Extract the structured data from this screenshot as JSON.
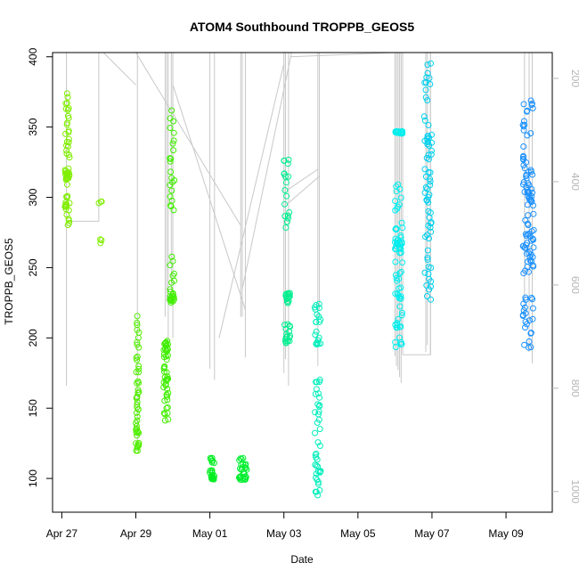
{
  "chart_data": {
    "type": "scatter",
    "title": "ATOM4 Southbound TROPPB_GEOS5",
    "xlabel": "Date",
    "ylabel": "TROPPB_GEOS5",
    "x_axis": {
      "type": "date",
      "range": [
        "2016-04-26T18:00",
        "2016-05-10T06:00"
      ],
      "ticks": [
        {
          "date": "2016-04-27",
          "label": "Apr 27"
        },
        {
          "date": "2016-04-29",
          "label": "Apr 29"
        },
        {
          "date": "2016-05-01",
          "label": "May 01"
        },
        {
          "date": "2016-05-03",
          "label": "May 03"
        },
        {
          "date": "2016-05-05",
          "label": "May 05"
        },
        {
          "date": "2016-05-07",
          "label": "May 07"
        },
        {
          "date": "2016-05-09",
          "label": "May 09"
        }
      ]
    },
    "y_axis": {
      "range": [
        76,
        403
      ],
      "ticks": [
        100,
        150,
        200,
        250,
        300,
        350,
        400
      ]
    },
    "y2_axis": {
      "note_color": "#b5b5b5",
      "range": [
        1040,
        150
      ],
      "ticks": [
        200,
        400,
        600,
        800,
        1000
      ],
      "inverted": true
    },
    "grid": false,
    "legend": "none",
    "line_color": "#c8c8c8",
    "groups": [
      {
        "start": "2016-04-27T02:00",
        "end": "2016-04-27T05:00",
        "ranges": [
          [
            312,
            320
          ],
          [
            300,
            345
          ],
          [
            335,
            375
          ],
          [
            280,
            300
          ]
        ],
        "point_count": 60,
        "color": "#80ee00"
      },
      {
        "start": "2016-04-28T00:00",
        "end": "2016-04-28T02:00",
        "ranges": [
          [
            266,
            272
          ],
          [
            295,
            298
          ]
        ],
        "point_count": 6,
        "color": "#80ee00"
      },
      {
        "start": "2016-04-29T00:00",
        "end": "2016-04-29T02:00",
        "ranges": [
          [
            117,
            140
          ],
          [
            140,
            170
          ],
          [
            170,
            228
          ]
        ],
        "point_count": 50,
        "color": "#50ee00"
      },
      {
        "start": "2016-04-29T18:00",
        "end": "2016-04-29T21:00",
        "ranges": [
          [
            190,
            198
          ],
          [
            160,
            175
          ],
          [
            140,
            160
          ],
          [
            175,
            195
          ]
        ],
        "point_count": 50,
        "color": "#40ee00"
      },
      {
        "start": "2016-04-29T22:00",
        "end": "2016-04-30T01:00",
        "ranges": [
          [
            225,
            230
          ],
          [
            230,
            260
          ],
          [
            290,
            325
          ],
          [
            325,
            362
          ]
        ],
        "point_count": 45,
        "color": "#40ee00"
      },
      {
        "start": "2016-05-01T00:00",
        "end": "2016-05-01T03:00",
        "ranges": [
          [
            99,
            102
          ],
          [
            102,
            115
          ]
        ],
        "point_count": 25,
        "color": "#00ee20"
      },
      {
        "start": "2016-05-01T19:00",
        "end": "2016-05-02T00:00",
        "ranges": [
          [
            99,
            102
          ],
          [
            102,
            115
          ]
        ],
        "point_count": 35,
        "color": "#00ee30"
      },
      {
        "start": "2016-05-03T00:00",
        "end": "2016-05-03T04:00",
        "ranges": [
          [
            193,
            210
          ],
          [
            224,
            232
          ],
          [
            278,
            330
          ]
        ],
        "point_count": 55,
        "color": "#00ee90"
      },
      {
        "start": "2016-05-03T20:00",
        "end": "2016-05-04T00:00",
        "ranges": [
          [
            88,
            120
          ],
          [
            120,
            175
          ],
          [
            195,
            225
          ]
        ],
        "point_count": 60,
        "color": "#00eebb"
      },
      {
        "start": "2016-05-06T00:00",
        "end": "2016-05-06T05:00",
        "ranges": [
          [
            263,
            270
          ],
          [
            270,
            310
          ],
          [
            225,
            262
          ],
          [
            193,
            228
          ],
          [
            345,
            347
          ]
        ],
        "point_count": 90,
        "color": "#00eeee"
      },
      {
        "start": "2016-05-06T19:00",
        "end": "2016-05-07T00:00",
        "ranges": [
          [
            226,
            270
          ],
          [
            270,
            300
          ],
          [
            330,
            345
          ],
          [
            345,
            400
          ],
          [
            300,
            330
          ]
        ],
        "point_count": 70,
        "color": "#00d0ee"
      },
      {
        "start": "2016-05-09T11:00",
        "end": "2016-05-09T18:00",
        "ranges": [
          [
            192,
            230
          ],
          [
            245,
            268
          ],
          [
            268,
            300
          ],
          [
            300,
            320
          ],
          [
            320,
            370
          ]
        ],
        "point_count": 110,
        "color": "#1a90ff"
      }
    ],
    "vertical_lines": [
      {
        "date": "2016-04-27T03:00",
        "from": 166,
        "to": 403
      },
      {
        "date": "2016-04-29T01:00",
        "from": 120,
        "to": 403
      },
      {
        "date": "2016-04-29T19:00",
        "from": 215,
        "to": 403
      },
      {
        "date": "2016-04-29T20:00",
        "from": 225,
        "to": 403
      },
      {
        "date": "2016-04-29T21:00",
        "from": 190,
        "to": 403
      },
      {
        "date": "2016-04-29T23:00",
        "from": 230,
        "to": 403
      },
      {
        "date": "2016-04-30T00:00",
        "from": 200,
        "to": 403
      },
      {
        "date": "2016-05-01T00:00",
        "from": 178,
        "to": 403
      },
      {
        "date": "2016-05-01T03:00",
        "from": 170,
        "to": 403
      },
      {
        "date": "2016-05-01T20:00",
        "from": 215,
        "to": 403
      },
      {
        "date": "2016-05-01T21:00",
        "from": 215,
        "to": 403
      },
      {
        "date": "2016-05-01T23:00",
        "from": 186,
        "to": 403
      },
      {
        "date": "2016-05-03T00:00",
        "from": 175,
        "to": 403
      },
      {
        "date": "2016-05-03T01:00",
        "from": 185,
        "to": 403
      },
      {
        "date": "2016-05-03T03:00",
        "from": 166,
        "to": 403
      },
      {
        "date": "2016-05-03T22:00",
        "from": 180,
        "to": 403
      },
      {
        "date": "2016-05-03T23:00",
        "from": 220,
        "to": 403
      },
      {
        "date": "2016-05-06T00:00",
        "from": 187,
        "to": 403
      },
      {
        "date": "2016-05-06T01:00",
        "from": 180,
        "to": 403
      },
      {
        "date": "2016-05-06T02:00",
        "from": 177,
        "to": 403
      },
      {
        "date": "2016-05-06T03:00",
        "from": 172,
        "to": 403
      },
      {
        "date": "2016-05-06T04:00",
        "from": 168,
        "to": 403
      },
      {
        "date": "2016-05-06T05:00",
        "from": 188,
        "to": 403
      },
      {
        "date": "2016-05-06T20:00",
        "from": 190,
        "to": 403
      },
      {
        "date": "2016-05-06T21:00",
        "from": 195,
        "to": 403
      },
      {
        "date": "2016-05-06T23:00",
        "from": 188,
        "to": 403
      },
      {
        "date": "2016-05-09T12:00",
        "from": 215,
        "to": 403
      },
      {
        "date": "2016-05-09T15:00",
        "from": 190,
        "to": 403
      },
      {
        "date": "2016-05-09T17:00",
        "from": 182,
        "to": 403
      }
    ],
    "connector_lines": [
      [
        [
          "2016-04-27T03:00",
          283
        ],
        [
          "2016-04-28T00:00",
          283
        ],
        [
          "2016-04-28T00:00",
          403
        ]
      ],
      [
        [
          "2016-04-28T03:00",
          403
        ],
        [
          "2016-04-29T00:00",
          380
        ]
      ],
      [
        [
          "2016-04-29T00:00",
          403
        ],
        [
          "2016-05-01T20:00",
          280
        ]
      ],
      [
        [
          "2016-04-30T00:00",
          380
        ],
        [
          "2016-05-01T23:00",
          220
        ]
      ],
      [
        [
          "2016-05-01T06:00",
          200
        ],
        [
          "2016-05-03T00:00",
          395
        ]
      ],
      [
        [
          "2016-05-01T21:00",
          235
        ],
        [
          "2016-05-03T05:00",
          403
        ]
      ],
      [
        [
          "2016-05-03T02:00",
          295
        ],
        [
          "2016-05-03T23:00",
          315
        ]
      ],
      [
        [
          "2016-05-03T02:00",
          305
        ],
        [
          "2016-05-03T22:00",
          320
        ]
      ],
      [
        [
          "2016-05-03T04:00",
          400
        ],
        [
          "2016-05-06T00:00",
          403
        ]
      ],
      [
        [
          "2016-05-06T05:00",
          188
        ],
        [
          "2016-05-06T23:00",
          188
        ],
        [
          "2016-05-06T23:00",
          403
        ]
      ]
    ]
  }
}
